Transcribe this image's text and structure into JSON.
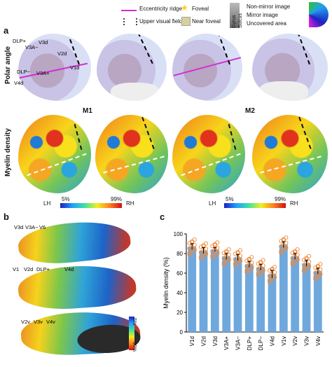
{
  "panel_a": {
    "label": "a",
    "legend": {
      "eccentricity": "Eccentricity ridge",
      "upper_visual": "Upper visual field",
      "foveal": "Foveal",
      "near_foveal": "Near foveal",
      "gyrus": "Gyrus",
      "sulcus": "Sulcus",
      "non_mirror": "Non-mirror image",
      "mirror": "Mirror image",
      "uncovered": "Uncovered area"
    },
    "row_polar": "Polar angle",
    "row_myelin": "Myelin density",
    "monkey1": "M1",
    "monkey2": "M2",
    "cbar_min": "5%",
    "cbar_max": "99%",
    "lh": "LH",
    "rh": "RH",
    "areas": {
      "dlp_plus": "DLP+",
      "v3a_minus": "V3A−",
      "v3d": "V3d",
      "v2d": "V2d",
      "v1d": "V1d",
      "dlp_minus": "DLP−",
      "v3a_plus": "V3A+",
      "v4d": "V4d"
    }
  },
  "panel_b": {
    "label": "b",
    "areas": {
      "v3d": "V3d",
      "v3a": "V3A−",
      "v6": "V6",
      "v1": "V1",
      "v2d": "V2d",
      "dlp": "DLP+",
      "v4d": "V4d",
      "v2v": "V2v",
      "v3v": "V3v",
      "v4v": "V4v"
    },
    "cbar_top": "5%",
    "cbar_bottom": "99%"
  },
  "panel_c": {
    "label": "c"
  },
  "chart_data": {
    "type": "bar",
    "categories": [
      "V1d",
      "V2d",
      "V3d",
      "V3A+",
      "V3A−",
      "DLP+",
      "DLP−",
      "V4d",
      "V1v",
      "V2v",
      "V3v",
      "V4v"
    ],
    "values": [
      87,
      83,
      84,
      77,
      76,
      69,
      66,
      59,
      89,
      77,
      70,
      62
    ],
    "errors": [
      3,
      3,
      2,
      3,
      3,
      3,
      3,
      4,
      3,
      3,
      3,
      3
    ],
    "ylabel": "Myelin density (%)",
    "ylim": [
      0,
      100
    ],
    "yticks": [
      0,
      20,
      40,
      60,
      80,
      100
    ],
    "bar_color": "#6fa8dc",
    "dot_color": "#f08a3a"
  }
}
